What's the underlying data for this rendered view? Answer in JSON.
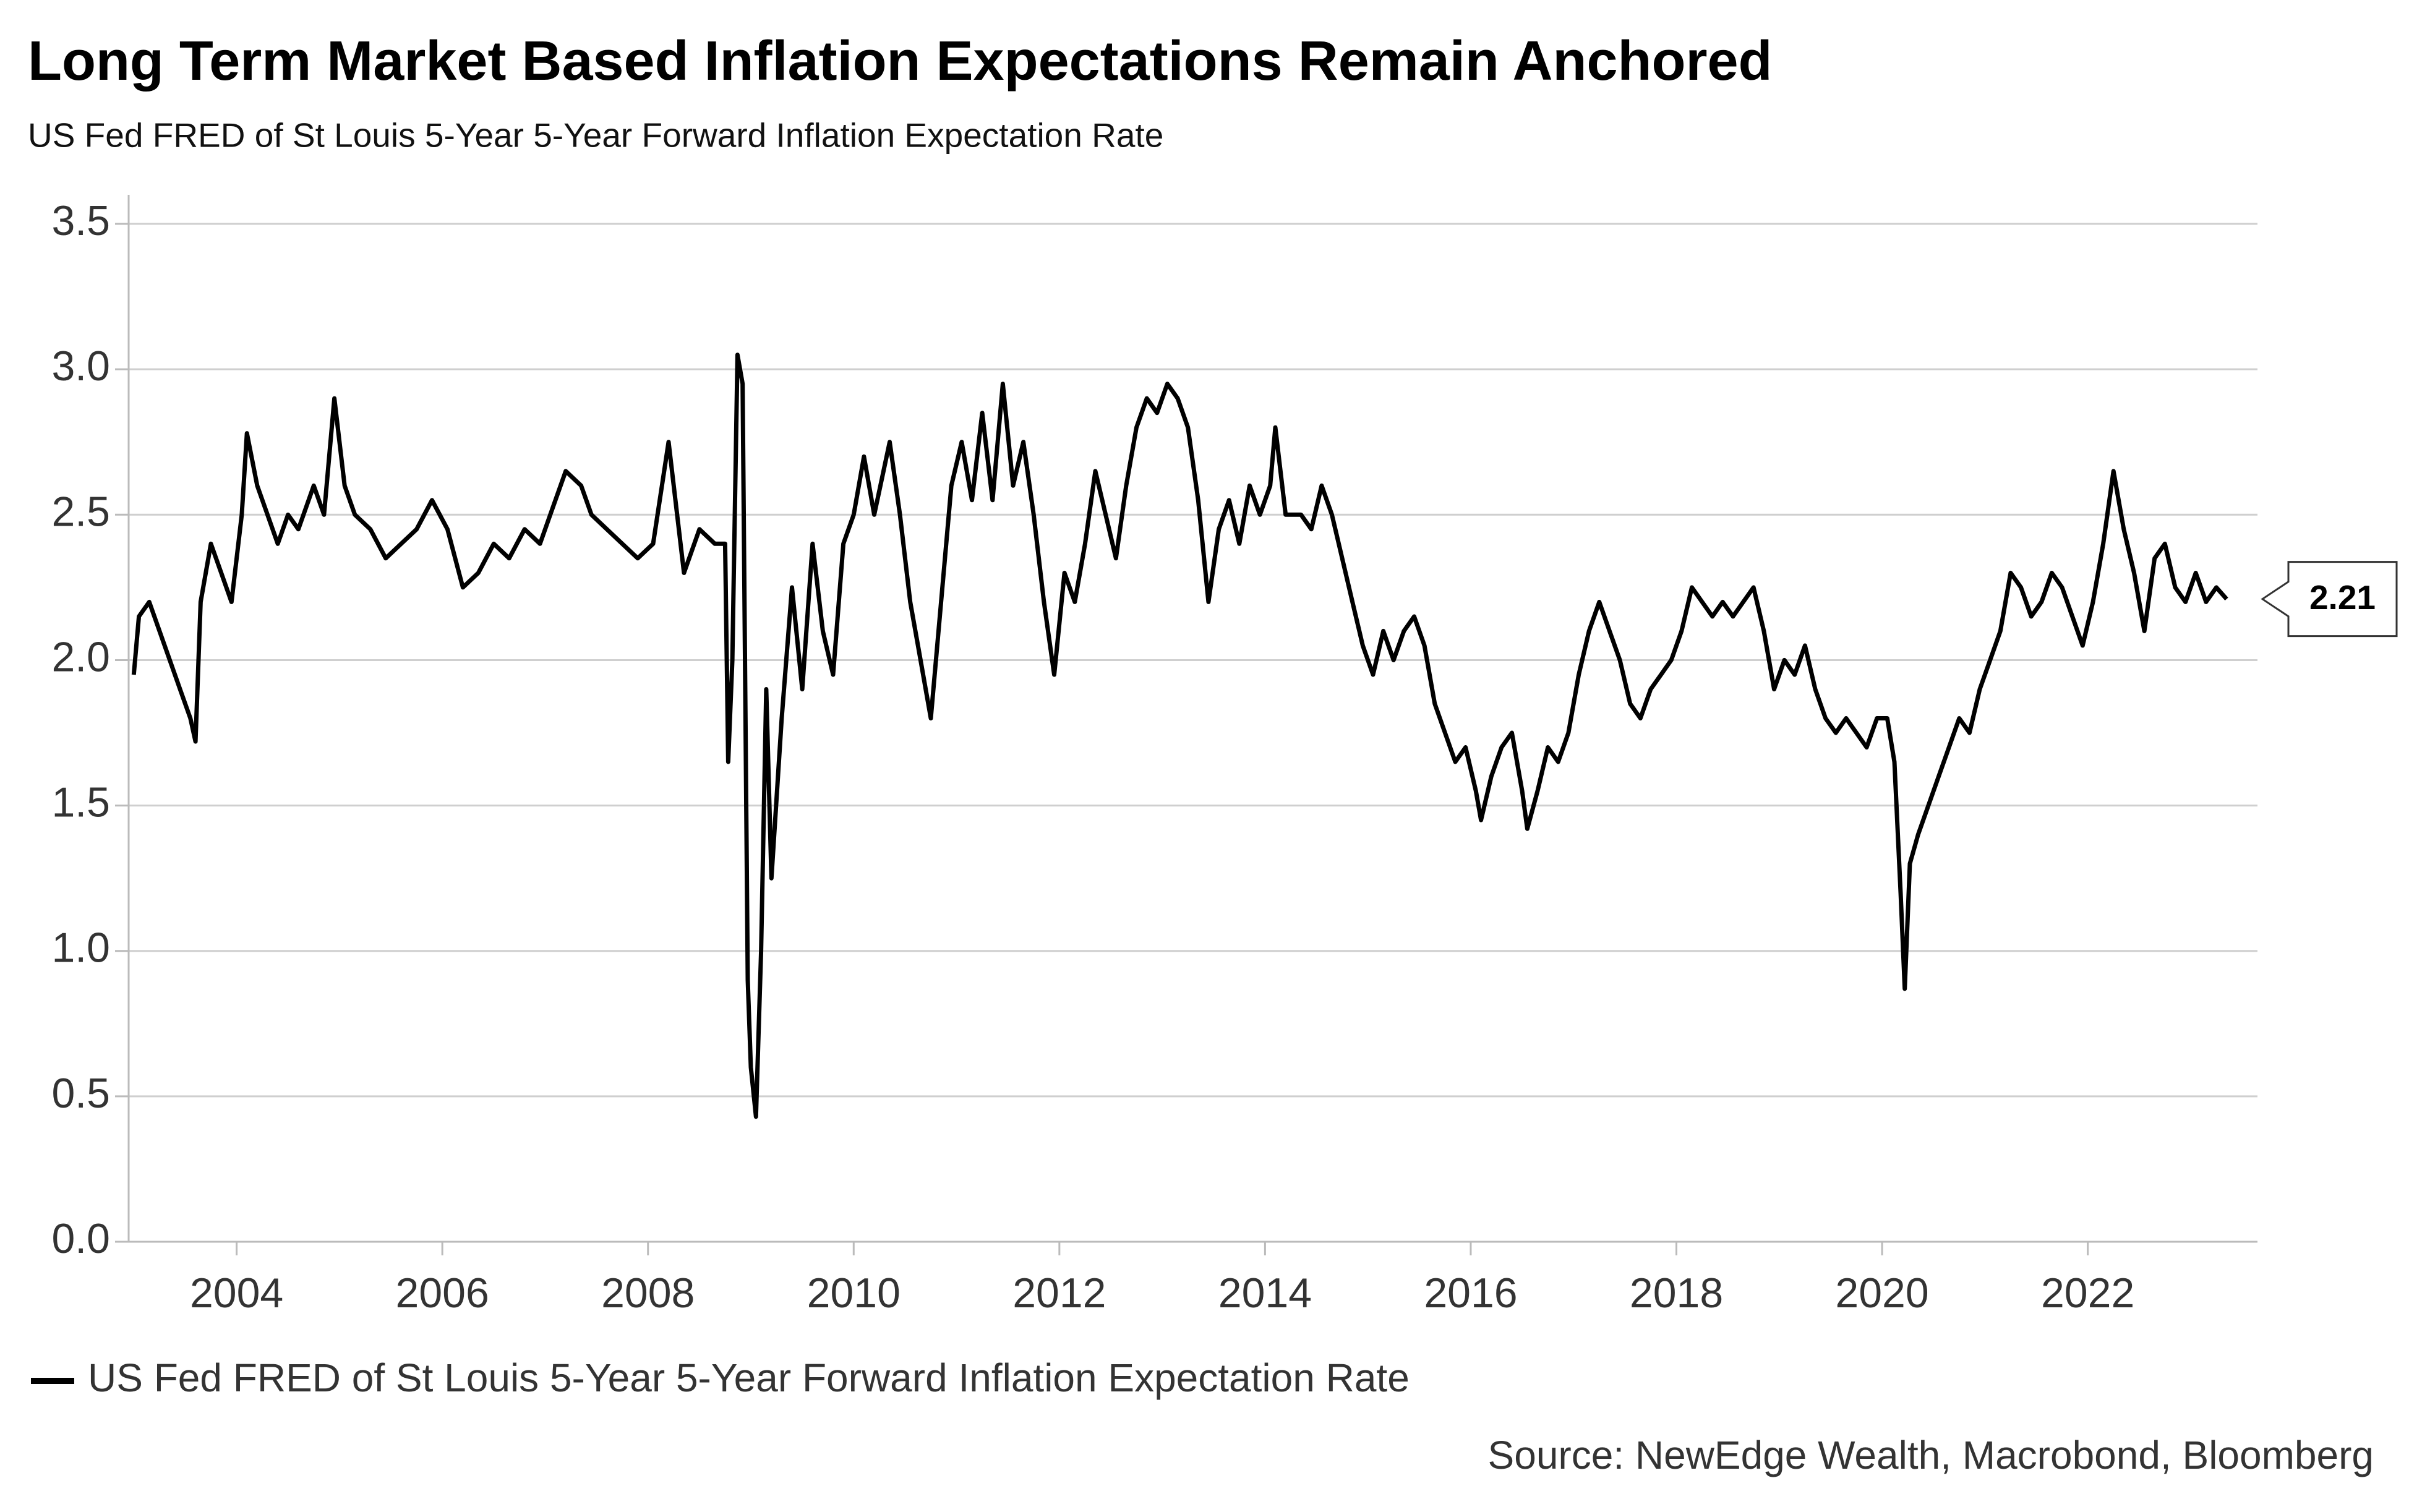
{
  "chart_data": {
    "type": "line",
    "title": "Long Term Market Based Inflation Expectations Remain Anchored",
    "subtitle": "US Fed FRED of St Louis 5-Year 5-Year Forward Inflation Expectation Rate",
    "source": "Source: NewEdge Wealth, Macrobond, Bloomberg",
    "xlim": [
      2002.95,
      2023.65
    ],
    "xticks": [
      2004,
      2006,
      2008,
      2010,
      2012,
      2014,
      2016,
      2018,
      2020,
      2022
    ],
    "ylim": [
      0,
      3.6
    ],
    "yticks": [
      {
        "value": 0,
        "label": "0.0"
      },
      0.5,
      {
        "value": 1,
        "label": "1.0"
      },
      1.5,
      {
        "value": 2,
        "label": "2.0"
      },
      2.5,
      {
        "value": 3,
        "label": "3.0"
      },
      3.5
    ],
    "grid": true,
    "legend": "bottom-left",
    "x": [
      2003.0,
      2003.05,
      2003.15,
      2003.25,
      2003.35,
      2003.45,
      2003.55,
      2003.6,
      2003.65,
      2003.75,
      2003.85,
      2003.95,
      2004.05,
      2004.1,
      2004.2,
      2004.3,
      2004.4,
      2004.5,
      2004.6,
      2004.75,
      2004.85,
      2004.95,
      2005.05,
      2005.15,
      2005.3,
      2005.45,
      2005.6,
      2005.75,
      2005.9,
      2006.05,
      2006.2,
      2006.35,
      2006.5,
      2006.65,
      2006.8,
      2006.95,
      2007.05,
      2007.2,
      2007.35,
      2007.45,
      2007.6,
      2007.75,
      2007.9,
      2008.05,
      2008.2,
      2008.35,
      2008.5,
      2008.65,
      2008.75,
      2008.78,
      2008.82,
      2008.87,
      2008.92,
      2008.97,
      2009.0,
      2009.05,
      2009.1,
      2009.15,
      2009.2,
      2009.3,
      2009.4,
      2009.5,
      2009.6,
      2009.7,
      2009.8,
      2009.9,
      2010.0,
      2010.1,
      2010.2,
      2010.35,
      2010.45,
      2010.55,
      2010.65,
      2010.75,
      2010.85,
      2010.95,
      2011.05,
      2011.15,
      2011.25,
      2011.35,
      2011.45,
      2011.55,
      2011.65,
      2011.75,
      2011.85,
      2011.95,
      2012.05,
      2012.15,
      2012.25,
      2012.35,
      2012.45,
      2012.55,
      2012.65,
      2012.75,
      2012.85,
      2012.95,
      2013.05,
      2013.15,
      2013.25,
      2013.35,
      2013.45,
      2013.55,
      2013.65,
      2013.75,
      2013.85,
      2013.95,
      2014.05,
      2014.1,
      2014.2,
      2014.35,
      2014.45,
      2014.55,
      2014.65,
      2014.75,
      2014.85,
      2014.95,
      2015.05,
      2015.15,
      2015.25,
      2015.35,
      2015.45,
      2015.55,
      2015.65,
      2015.75,
      2015.85,
      2015.95,
      2016.05,
      2016.1,
      2016.2,
      2016.3,
      2016.4,
      2016.5,
      2016.55,
      2016.65,
      2016.75,
      2016.85,
      2016.95,
      2017.05,
      2017.15,
      2017.25,
      2017.35,
      2017.45,
      2017.55,
      2017.65,
      2017.75,
      2017.85,
      2017.95,
      2018.05,
      2018.15,
      2018.25,
      2018.35,
      2018.45,
      2018.55,
      2018.65,
      2018.75,
      2018.85,
      2018.95,
      2019.05,
      2019.15,
      2019.25,
      2019.35,
      2019.45,
      2019.55,
      2019.65,
      2019.75,
      2019.85,
      2019.95,
      2020.05,
      2020.12,
      2020.18,
      2020.22,
      2020.27,
      2020.35,
      2020.45,
      2020.55,
      2020.65,
      2020.75,
      2020.85,
      2020.95,
      2021.05,
      2021.15,
      2021.25,
      2021.35,
      2021.45,
      2021.55,
      2021.65,
      2021.75,
      2021.85,
      2021.95,
      2022.05,
      2022.15,
      2022.25,
      2022.35,
      2022.45,
      2022.55,
      2022.65,
      2022.75,
      2022.85,
      2022.95,
      2023.05,
      2023.15,
      2023.25,
      2023.35
    ],
    "series": [
      {
        "name": "US Fed FRED of St Louis 5-Year 5-Year Forward Inflation Expectation Rate",
        "color": "#000000",
        "values": [
          1.95,
          2.15,
          2.2,
          2.1,
          2.0,
          1.9,
          1.8,
          1.72,
          2.2,
          2.4,
          2.3,
          2.2,
          2.5,
          2.78,
          2.6,
          2.5,
          2.4,
          2.5,
          2.45,
          2.6,
          2.5,
          2.9,
          2.6,
          2.5,
          2.45,
          2.35,
          2.4,
          2.45,
          2.55,
          2.45,
          2.25,
          2.3,
          2.4,
          2.35,
          2.45,
          2.4,
          2.5,
          2.65,
          2.6,
          2.5,
          2.45,
          2.4,
          2.35,
          2.4,
          2.75,
          2.3,
          2.45,
          2.4,
          2.4,
          1.65,
          2.0,
          3.05,
          2.95,
          0.9,
          0.6,
          0.43,
          1.0,
          1.9,
          1.25,
          1.8,
          2.25,
          1.9,
          2.4,
          2.1,
          1.95,
          2.4,
          2.5,
          2.7,
          2.5,
          2.75,
          2.5,
          2.2,
          2.0,
          1.8,
          2.2,
          2.6,
          2.75,
          2.55,
          2.85,
          2.55,
          2.95,
          2.6,
          2.75,
          2.5,
          2.2,
          1.95,
          2.3,
          2.2,
          2.4,
          2.65,
          2.5,
          2.35,
          2.6,
          2.8,
          2.9,
          2.85,
          2.95,
          2.9,
          2.8,
          2.55,
          2.2,
          2.45,
          2.55,
          2.4,
          2.6,
          2.5,
          2.6,
          2.8,
          2.5,
          2.5,
          2.45,
          2.6,
          2.5,
          2.35,
          2.2,
          2.05,
          1.95,
          2.1,
          2.0,
          2.1,
          2.15,
          2.05,
          1.85,
          1.75,
          1.65,
          1.7,
          1.55,
          1.45,
          1.6,
          1.7,
          1.75,
          1.55,
          1.42,
          1.55,
          1.7,
          1.65,
          1.75,
          1.95,
          2.1,
          2.2,
          2.1,
          2.0,
          1.85,
          1.8,
          1.9,
          1.95,
          2.0,
          2.1,
          2.25,
          2.2,
          2.15,
          2.2,
          2.15,
          2.2,
          2.25,
          2.1,
          1.9,
          2.0,
          1.95,
          2.05,
          1.9,
          1.8,
          1.75,
          1.8,
          1.75,
          1.7,
          1.8,
          1.8,
          1.65,
          1.2,
          0.87,
          1.3,
          1.4,
          1.5,
          1.6,
          1.7,
          1.8,
          1.75,
          1.9,
          2.0,
          2.1,
          2.3,
          2.25,
          2.15,
          2.2,
          2.3,
          2.25,
          2.15,
          2.05,
          2.2,
          2.4,
          2.65,
          2.45,
          2.3,
          2.1,
          2.35,
          2.4,
          2.25,
          2.2,
          2.3,
          2.2,
          2.25,
          2.21
        ]
      }
    ]
  }
}
